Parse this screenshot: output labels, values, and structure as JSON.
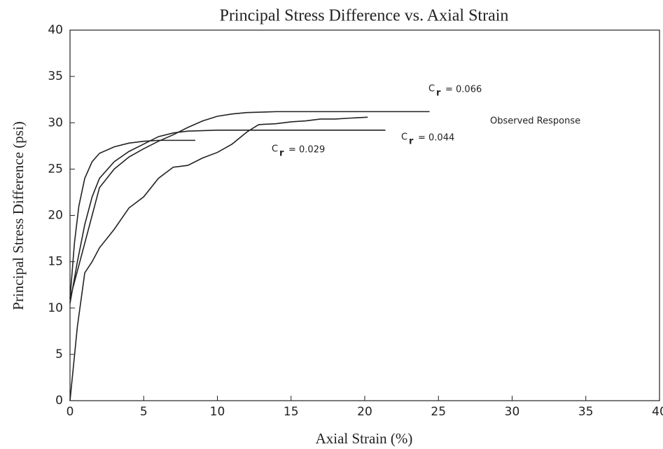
{
  "chart_data": {
    "type": "line",
    "title": "Principal Stress Difference vs. Axial Strain",
    "x_label": "Axial Strain (%)",
    "y_label": "Principal Stress Difference (psi)",
    "xlim": [
      0,
      40
    ],
    "xticks": [
      0,
      5,
      10,
      15,
      20,
      25,
      30,
      35,
      40
    ],
    "ylim": [
      0,
      40
    ],
    "yticks": [
      0,
      5,
      10,
      15,
      20,
      25,
      30,
      35,
      40
    ],
    "color": "#222222",
    "series": [
      {
        "x": [
          0,
          0.3,
          0.6,
          1,
          1.5,
          2,
          3,
          4,
          5,
          6,
          8.5
        ],
        "values": [
          11,
          17,
          21,
          24,
          25.8,
          26.7,
          27.4,
          27.8,
          28,
          28.1,
          28.1
        ]
      },
      {
        "x": [
          0,
          0.5,
          1,
          1.5,
          2,
          3,
          4,
          5,
          6,
          7,
          8,
          10,
          21.4
        ],
        "values": [
          10.5,
          15,
          19,
          22,
          24,
          25.8,
          26.9,
          27.7,
          28.5,
          28.9,
          29.1,
          29.2,
          29.2
        ]
      },
      {
        "x": [
          0,
          0.5,
          1,
          1.5,
          2,
          3,
          4,
          5,
          6,
          7,
          8,
          9,
          10,
          11,
          12,
          14,
          24.4
        ],
        "values": [
          11,
          14,
          17,
          20,
          23,
          25,
          26.3,
          27.2,
          28,
          28.7,
          29.5,
          30.2,
          30.7,
          30.95,
          31.1,
          31.2,
          31.2
        ]
      },
      {
        "x": [
          0,
          0.5,
          1,
          1.5,
          2,
          3,
          4,
          5,
          6,
          7,
          8,
          9,
          10,
          11,
          12,
          12.8,
          14,
          15,
          16,
          17,
          18,
          19,
          20.2
        ],
        "values": [
          0,
          8,
          13.8,
          15,
          16.5,
          18.5,
          20.8,
          22,
          24,
          25.2,
          25.4,
          26.2,
          26.8,
          27.7,
          29,
          29.8,
          29.9,
          30.1,
          30.2,
          30.4,
          30.4,
          30.5,
          30.6
        ]
      }
    ],
    "annotations": [
      {
        "main": "C",
        "sub": "r",
        "rest": "= 0.029"
      },
      {
        "main": "C",
        "sub": "r",
        "rest": "= 0.044"
      },
      {
        "main": "C",
        "sub": "r",
        "rest": "= 0.066"
      },
      {
        "main": "Observed Response"
      }
    ]
  }
}
